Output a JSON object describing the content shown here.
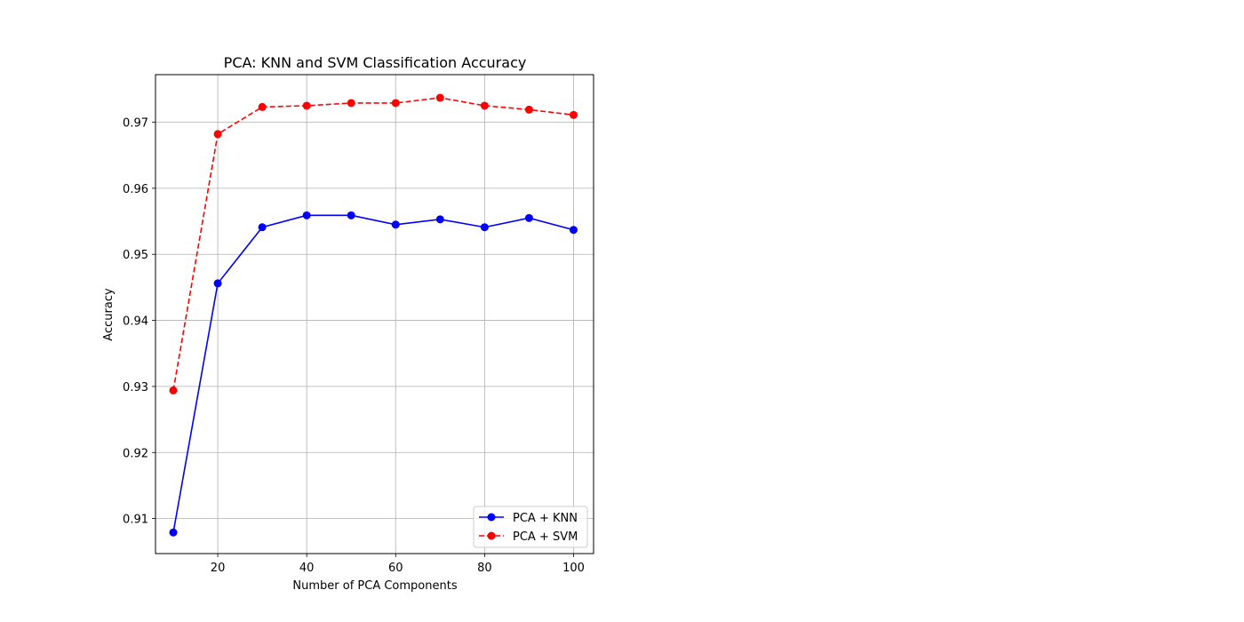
{
  "chart_data": {
    "type": "line",
    "title": "PCA: KNN and SVM Classification Accuracy",
    "xlabel": "Number of PCA Components",
    "ylabel": "Accuracy",
    "x": [
      10,
      20,
      30,
      40,
      50,
      60,
      70,
      80,
      90,
      100
    ],
    "xlim": [
      6,
      104.5
    ],
    "ylim": [
      0.9047,
      0.9772
    ],
    "xticks": [
      20,
      40,
      60,
      80,
      100
    ],
    "yticks": [
      0.91,
      0.92,
      0.93,
      0.94,
      0.95,
      0.96,
      0.97
    ],
    "xtick_labels": [
      "20",
      "40",
      "60",
      "80",
      "100"
    ],
    "ytick_labels": [
      "0.91",
      "0.92",
      "0.93",
      "0.94",
      "0.95",
      "0.96",
      "0.97"
    ],
    "grid": true,
    "legend_position": "lower-right",
    "series": [
      {
        "name": "PCA + KNN",
        "color": "#0000ff",
        "line_style": "solid",
        "marker": "circle",
        "values": [
          0.9079,
          0.9456,
          0.9541,
          0.9559,
          0.9559,
          0.9545,
          0.9553,
          0.9541,
          0.9555,
          0.9537
        ]
      },
      {
        "name": "PCA + SVM",
        "color": "#ff0000",
        "line_style": "dashed",
        "marker": "circle",
        "values": [
          0.9294,
          0.9682,
          0.9723,
          0.9725,
          0.9729,
          0.9729,
          0.9737,
          0.9725,
          0.9719,
          0.9711
        ]
      }
    ]
  }
}
